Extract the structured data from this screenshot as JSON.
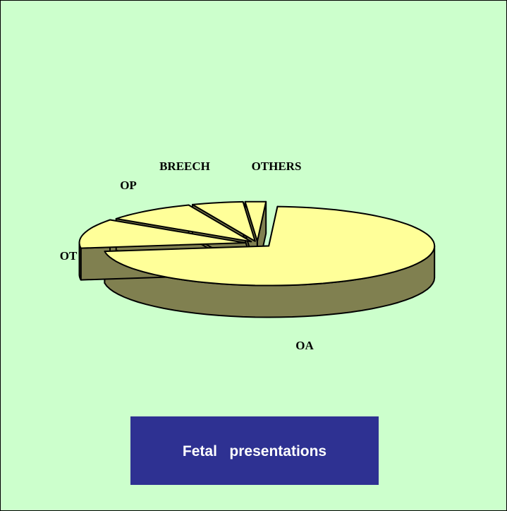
{
  "chart_data": {
    "type": "pie",
    "title": "Fetal   presentations",
    "categories": [
      "OA",
      "OT",
      "OP",
      "BREECH",
      "OTHERS"
    ],
    "values": [
      72,
      12,
      9,
      5,
      2
    ],
    "color": "#ffff99",
    "side_color": "#808050"
  }
}
